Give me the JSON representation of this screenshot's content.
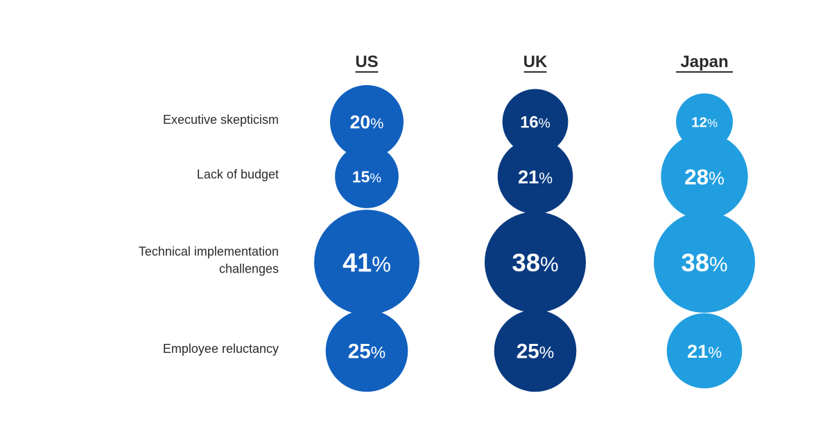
{
  "chart_data": {
    "type": "bubble-grid",
    "title": "",
    "columns": [
      "US",
      "UK",
      "Japan"
    ],
    "rows": [
      [
        "Executive skepticism"
      ],
      [
        "Lack of budget"
      ],
      [
        "Technical implementation",
        "challenges"
      ],
      [
        "Employee reluctancy"
      ]
    ],
    "series": [
      {
        "name": "US",
        "values": [
          20,
          15,
          41,
          25
        ],
        "color": "#1160BE"
      },
      {
        "name": "UK",
        "values": [
          16,
          21,
          38,
          25
        ],
        "color": "#093A80"
      },
      {
        "name": "Japan",
        "values": [
          12,
          28,
          38,
          21
        ],
        "color": "#219EE0"
      }
    ],
    "value_suffix": "%"
  }
}
